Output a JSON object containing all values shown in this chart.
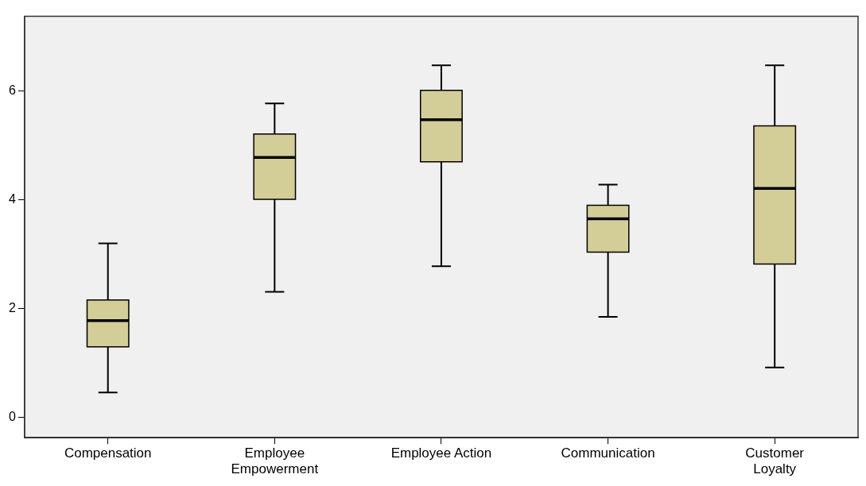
{
  "chart_data": {
    "type": "box",
    "categories": [
      "Compensation",
      "Employee\nEmpowerment",
      "Employee Action",
      "Communication",
      "Customer\nLoyalty"
    ],
    "boxes": [
      {
        "low": 0.46,
        "q1": 1.3,
        "median": 1.78,
        "q3": 2.16,
        "high": 3.2
      },
      {
        "low": 2.31,
        "q1": 4.01,
        "median": 4.78,
        "q3": 5.21,
        "high": 5.77
      },
      {
        "low": 2.78,
        "q1": 4.7,
        "median": 5.47,
        "q3": 6.01,
        "high": 6.47
      },
      {
        "low": 1.85,
        "q1": 3.04,
        "median": 3.65,
        "q3": 3.9,
        "high": 4.28
      },
      {
        "low": 0.92,
        "q1": 2.82,
        "median": 4.21,
        "q3": 5.36,
        "high": 6.47
      }
    ],
    "color": "#d3ce97",
    "ylim": [
      -0.37,
      7.37
    ],
    "yticks": [
      0,
      2,
      4,
      6
    ],
    "grid": false,
    "legend": false
  }
}
